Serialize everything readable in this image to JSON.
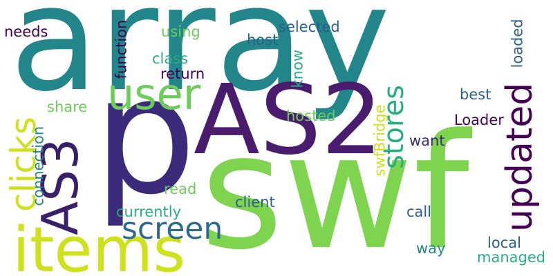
{
  "words": {
    "array": "array",
    "swf": "swf",
    "p": "p",
    "as2": "AS2",
    "as3": "AS3",
    "items": "items",
    "user": "user",
    "clicks": "clicks",
    "updated": "updated",
    "screen": "screen",
    "stores": "stores",
    "function": "function",
    "using": "using",
    "class": "class",
    "return": "return",
    "needs": "needs",
    "host": "host",
    "selected": "selected",
    "know": "know",
    "loaded": "loaded",
    "best": "best",
    "share": "share",
    "hosted": "hosted",
    "connection": "connection",
    "swfbridge": "swfBridge",
    "loader": "Loader",
    "want": "want",
    "read": "read",
    "client": "client",
    "currently": "currently",
    "call": "call",
    "way": "way",
    "local": "local",
    "managed": "managed"
  },
  "palette": {
    "dark_purple": "#440154",
    "indigo": "#3b2b7a",
    "blue": "#2c5f8a",
    "teal": "#23868b",
    "green": "#28ae80",
    "light_green": "#6ccd5a",
    "lime": "#a6d93c",
    "yellow": "#cfe11c"
  }
}
